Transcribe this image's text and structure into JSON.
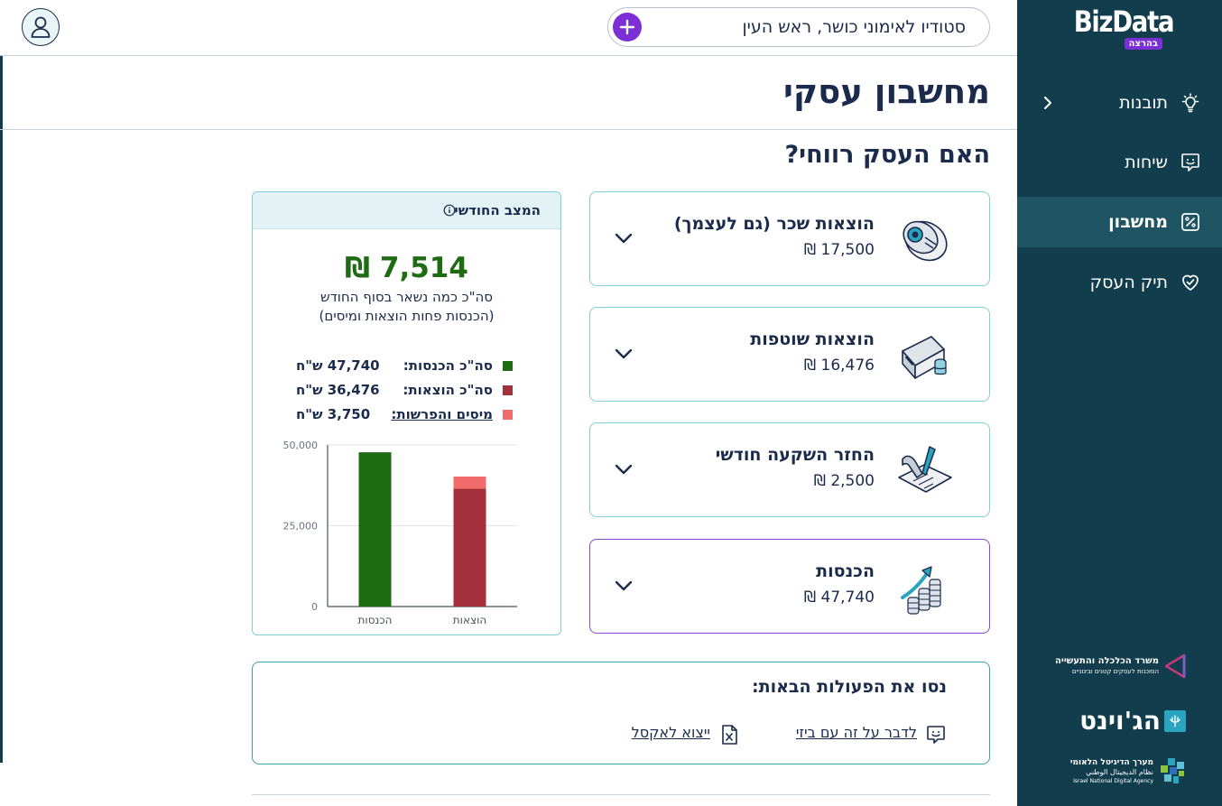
{
  "sidebar": {
    "logo": "BizData",
    "logo_badge": "בהרצה",
    "items": [
      {
        "label": "תובנות",
        "icon": "lightbulb-icon",
        "active": false,
        "has_chevron": true
      },
      {
        "label": "שיחות",
        "icon": "chat-icon",
        "active": false
      },
      {
        "label": "מחשבון",
        "icon": "calculator-icon",
        "active": true
      },
      {
        "label": "תיק העסק",
        "icon": "heart-icon",
        "active": false
      }
    ],
    "sponsors": [
      {
        "name": "משרד הכלכלה והתעשייה",
        "sub": "הסוכנות לעסקים קטנים ובינוניים"
      },
      {
        "name": "הג'וינט"
      },
      {
        "name": "מערך הדיגיטל הלאומי",
        "sub": "نظام الديجيتال الوطني",
        "sub2": "Israel National Digital Agency"
      }
    ]
  },
  "topbar": {
    "business_name": "סטודיו לאימוני כושר, ראש העין"
  },
  "page": {
    "title": "מחשבון עסקי",
    "section_title": "האם העסק רווחי?"
  },
  "cards": [
    {
      "title": "הוצאות שכר (גם לעצמך)",
      "value": "17,500 ₪",
      "icon": "salary-icon"
    },
    {
      "title": "הוצאות שוטפות",
      "value": "16,476 ₪",
      "icon": "credit-card-coins-icon"
    },
    {
      "title": "החזר השקעה חודשי",
      "value": "2,500 ₪",
      "icon": "signing-contract-icon"
    },
    {
      "title": "הכנסות",
      "value": "47,740 ₪",
      "icon": "growth-coins-icon"
    }
  ],
  "monthly": {
    "title": "המצב החודשי",
    "total": "7,514 ₪",
    "desc_line1": "סה\"כ כמה נשאר בסוף החודש",
    "desc_line2": "(הכנסות פחות הוצאות ומיסים)",
    "legend": [
      {
        "label": "סה\"כ הכנסות:",
        "value": "47,740 ש\"ח",
        "color": "#1f6b13",
        "link": false
      },
      {
        "label": "סה\"כ הוצאות:",
        "value": "36,476 ש\"ח",
        "color": "#a3303a",
        "link": false
      },
      {
        "label": "מיסים והפרשות:",
        "value": "3,750 ש\"ח",
        "color": "#f26c6c",
        "link": true
      }
    ]
  },
  "chart_data": {
    "type": "bar",
    "categories": [
      "הכנסות",
      "הוצאות"
    ],
    "series": [
      {
        "values": [
          47740,
          36476
        ],
        "colors": [
          "#1f6b13",
          "#a3303a"
        ]
      },
      {
        "values": [
          0,
          3750
        ],
        "color": "#f26c6c"
      }
    ],
    "stacked": true,
    "ylim": [
      0,
      50000
    ],
    "yticks": [
      "50,000",
      "25,000",
      "0"
    ],
    "ytick_values": [
      50000,
      25000,
      0
    ]
  },
  "actions": {
    "title": "נסו את הפעולות הבאות:",
    "talk_label": "לדבר על זה עם ביזי",
    "export_label": "ייצוא לאקסל"
  }
}
